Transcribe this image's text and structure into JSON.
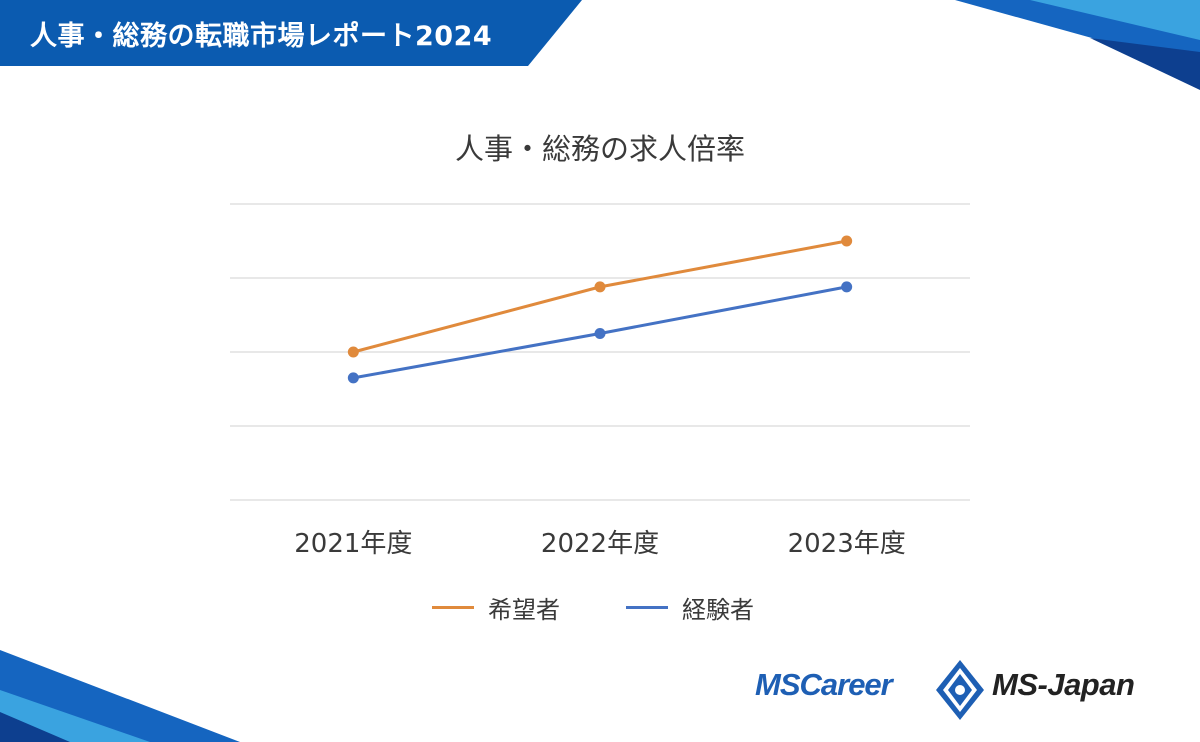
{
  "banner": {
    "title": "人事・総務の転職市場レポート2024"
  },
  "chart_data": {
    "type": "line",
    "title": "人事・総務の求人倍率",
    "categories": [
      "2021年度",
      "2022年度",
      "2023年度"
    ],
    "series": [
      {
        "name": "希望者",
        "color": "#e08a3c",
        "values": [
          2.0,
          2.88,
          3.5
        ]
      },
      {
        "name": "経験者",
        "color": "#4472c4",
        "values": [
          1.65,
          2.25,
          2.88
        ]
      }
    ],
    "ylim": [
      0,
      4
    ],
    "gridlines": true,
    "y_tick_labels_visible": false,
    "legend_position": "bottom"
  },
  "logos": {
    "left": "MSCareer",
    "right": "MS-Japan"
  },
  "colors": {
    "banner": "#0b5bb0",
    "accent_dark": "#0d3f8f",
    "accent_light": "#3aa3e0"
  }
}
